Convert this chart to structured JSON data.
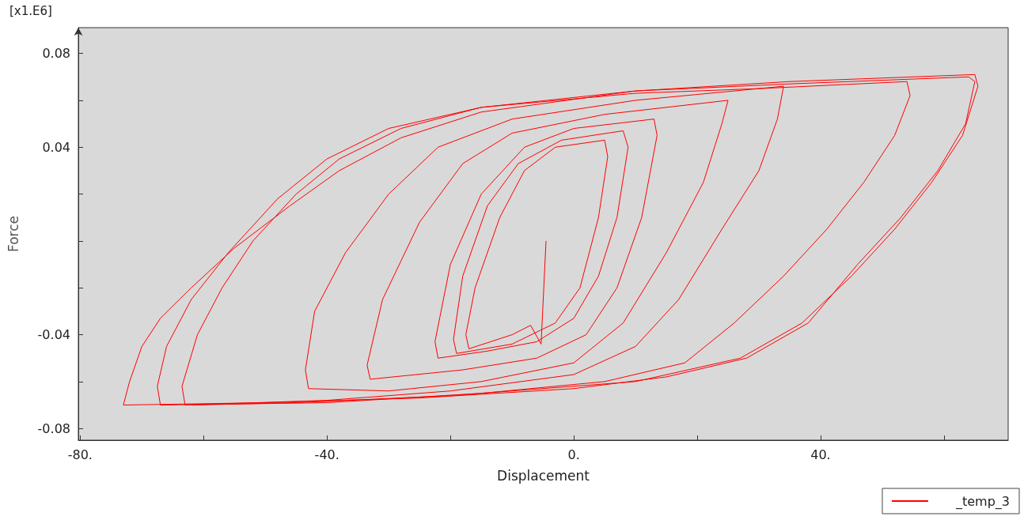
{
  "chart_data": {
    "type": "line",
    "xlabel": "Displacement",
    "ylabel": "Force",
    "annotations": [
      "[x1.E6]"
    ],
    "legend": "bottom right",
    "grid": false,
    "xlim": [
      -80.3,
      70.4
    ],
    "ylim": [
      -0.085,
      0.091
    ],
    "xticks": [
      {
        "value": -80,
        "label": "-80."
      },
      {
        "value": -60,
        "label": null
      },
      {
        "value": -40,
        "label": "-40."
      },
      {
        "value": -20,
        "label": null
      },
      {
        "value": 0,
        "label": "0."
      },
      {
        "value": 20,
        "label": null
      },
      {
        "value": 40,
        "label": "40."
      },
      {
        "value": 60,
        "label": null
      }
    ],
    "yticks": [
      -0.08,
      {
        "value": -0.06,
        "label": null
      },
      -0.04,
      {
        "value": -0.02,
        "label": null
      },
      {
        "value": 0,
        "label": null
      },
      {
        "value": 0.02,
        "label": null
      },
      0.04,
      {
        "value": 0.06,
        "label": null
      },
      0.08
    ],
    "series": [
      {
        "name": "_temp_3",
        "color": "#ff0000",
        "x": [
          -4.5,
          -5.3,
          -7,
          -10,
          -17,
          -17.5,
          -16,
          -12,
          -8,
          -3,
          5,
          5.5,
          4,
          1,
          -3,
          -10,
          -19,
          -19.5,
          -18,
          -14,
          -9,
          -2,
          8,
          8.8,
          7,
          4,
          0,
          -6,
          -14,
          -22,
          -22.5,
          -20,
          -15,
          -8,
          0,
          13,
          13.5,
          11,
          7,
          2,
          -6,
          -18,
          -33,
          -33.5,
          -31,
          -25,
          -18,
          -10,
          5,
          25,
          24,
          21,
          15,
          8,
          0,
          -15,
          -30,
          -43,
          -43.5,
          -42,
          -37,
          -30,
          -22,
          -10,
          10,
          34,
          33,
          30,
          24,
          17,
          10,
          0,
          -20,
          -40,
          -63,
          -63.5,
          -61,
          -57,
          -52,
          -45,
          -38,
          -28,
          -15,
          10,
          30,
          54,
          54.5,
          52,
          47,
          41,
          34,
          26,
          18,
          5,
          -15,
          -40,
          -67,
          -67.5,
          -66,
          -62,
          -56,
          -48,
          -40,
          -30,
          -15,
          10,
          35,
          64,
          65,
          63.5,
          59,
          53,
          46,
          38,
          28,
          15,
          0,
          -25,
          -50,
          -73,
          -72,
          -70,
          -67,
          -62,
          -55,
          -46,
          -38,
          -28,
          -15,
          10,
          35,
          65,
          65.5,
          63,
          58,
          52,
          45,
          37,
          27,
          10,
          -20,
          -45,
          -62
        ],
        "values": [
          0.0,
          -0.044,
          -0.036,
          -0.04,
          -0.046,
          -0.04,
          -0.02,
          0.01,
          0.03,
          0.04,
          0.043,
          0.036,
          0.01,
          -0.02,
          -0.035,
          -0.044,
          -0.048,
          -0.042,
          -0.015,
          0.015,
          0.033,
          0.043,
          0.047,
          0.04,
          0.01,
          -0.015,
          -0.033,
          -0.043,
          -0.047,
          -0.05,
          -0.043,
          -0.01,
          0.02,
          0.04,
          0.048,
          0.052,
          0.045,
          0.01,
          -0.02,
          -0.04,
          -0.05,
          -0.055,
          -0.059,
          -0.053,
          -0.025,
          0.008,
          0.033,
          0.046,
          0.054,
          0.06,
          0.05,
          0.025,
          -0.005,
          -0.035,
          -0.052,
          -0.06,
          -0.064,
          -0.063,
          -0.055,
          -0.03,
          -0.005,
          0.02,
          0.04,
          0.052,
          0.06,
          0.066,
          0.052,
          0.03,
          0.005,
          -0.025,
          -0.045,
          -0.057,
          -0.064,
          -0.068,
          -0.07,
          -0.062,
          -0.04,
          -0.02,
          0.0,
          0.02,
          0.035,
          0.048,
          0.057,
          0.063,
          0.065,
          0.068,
          0.062,
          0.045,
          0.025,
          0.005,
          -0.015,
          -0.035,
          -0.052,
          -0.06,
          -0.065,
          -0.069,
          -0.07,
          -0.062,
          -0.045,
          -0.025,
          -0.005,
          0.018,
          0.035,
          0.048,
          0.057,
          0.064,
          0.067,
          0.07,
          0.068,
          0.05,
          0.03,
          0.01,
          -0.01,
          -0.035,
          -0.05,
          -0.058,
          -0.063,
          -0.067,
          -0.069,
          -0.07,
          -0.06,
          -0.045,
          -0.033,
          -0.02,
          -0.003,
          0.015,
          0.03,
          0.044,
          0.055,
          0.064,
          0.068,
          0.071,
          0.066,
          0.045,
          0.025,
          0.005,
          -0.015,
          -0.035,
          -0.05,
          -0.06,
          -0.066,
          -0.069,
          -0.07
        ]
      }
    ]
  }
}
